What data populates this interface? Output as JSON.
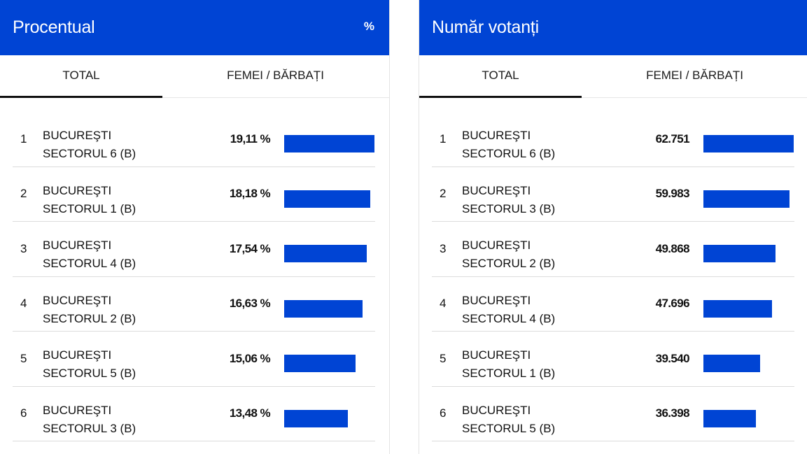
{
  "colors": {
    "accent": "#0044d4",
    "header_text": "#ffffff"
  },
  "panels": [
    {
      "id": "percent",
      "title": "Procentual",
      "unit": "%",
      "tabs": [
        {
          "label": "TOTAL",
          "active": true
        },
        {
          "label": "FEMEI / BĂRBAȚI",
          "active": false
        }
      ],
      "rows": [
        {
          "rank": "1",
          "city": "BUCUREŞTI",
          "sector": "SECTORUL 6 (B)",
          "value": "19,11 %",
          "num": 19.11
        },
        {
          "rank": "2",
          "city": "BUCUREŞTI",
          "sector": "SECTORUL 1 (B)",
          "value": "18,18 %",
          "num": 18.18
        },
        {
          "rank": "3",
          "city": "BUCUREŞTI",
          "sector": "SECTORUL 4 (B)",
          "value": "17,54 %",
          "num": 17.54
        },
        {
          "rank": "4",
          "city": "BUCUREŞTI",
          "sector": "SECTORUL 2 (B)",
          "value": "16,63 %",
          "num": 16.63
        },
        {
          "rank": "5",
          "city": "BUCUREŞTI",
          "sector": "SECTORUL 5 (B)",
          "value": "15,06 %",
          "num": 15.06
        },
        {
          "rank": "6",
          "city": "BUCUREŞTI",
          "sector": "SECTORUL 3 (B)",
          "value": "13,48 %",
          "num": 13.48
        }
      ]
    },
    {
      "id": "count",
      "title": "Număr votanți",
      "unit": "",
      "tabs": [
        {
          "label": "TOTAL",
          "active": true
        },
        {
          "label": "FEMEI / BĂRBAȚI",
          "active": false
        }
      ],
      "rows": [
        {
          "rank": "1",
          "city": "BUCUREŞTI",
          "sector": "SECTORUL 6 (B)",
          "value": "62.751",
          "num": 62751
        },
        {
          "rank": "2",
          "city": "BUCUREŞTI",
          "sector": "SECTORUL 3 (B)",
          "value": "59.983",
          "num": 59983
        },
        {
          "rank": "3",
          "city": "BUCUREŞTI",
          "sector": "SECTORUL 2 (B)",
          "value": "49.868",
          "num": 49868
        },
        {
          "rank": "4",
          "city": "BUCUREŞTI",
          "sector": "SECTORUL 4 (B)",
          "value": "47.696",
          "num": 47696
        },
        {
          "rank": "5",
          "city": "BUCUREŞTI",
          "sector": "SECTORUL 1 (B)",
          "value": "39.540",
          "num": 39540
        },
        {
          "rank": "6",
          "city": "BUCUREŞTI",
          "sector": "SECTORUL 5 (B)",
          "value": "36.398",
          "num": 36398
        }
      ]
    }
  ]
}
